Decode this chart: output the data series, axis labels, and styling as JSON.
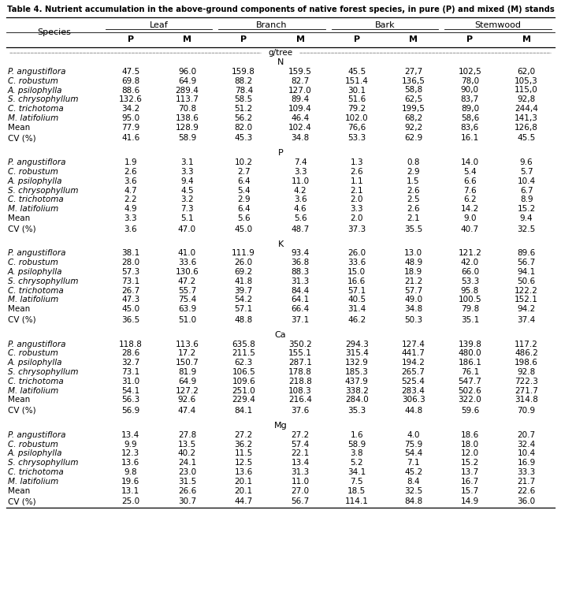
{
  "title": "Table 4. Nutrient accumulation in the above-ground components of native forest species, in pure (P) and mixed (M) stands",
  "col_groups": [
    "Leaf",
    "Branch",
    "Bark",
    "Stemwood"
  ],
  "sections": [
    {
      "nutrient": "N",
      "rows": [
        {
          "species": "P. angustiflora",
          "italic": true,
          "values": [
            "47.5",
            "96.0",
            "159.8",
            "159.5",
            "45.5",
            "27,7",
            "102,5",
            "62,0"
          ]
        },
        {
          "species": "C. robustum",
          "italic": true,
          "values": [
            "69.8",
            "64.9",
            "88.2",
            "82.7",
            "151.4",
            "136,5",
            "78,0",
            "105,3"
          ]
        },
        {
          "species": "A. psilophylla",
          "italic": true,
          "values": [
            "88.6",
            "289.4",
            "78.4",
            "127.0",
            "30.1",
            "58,8",
            "90,0",
            "115,0"
          ]
        },
        {
          "species": "S. chrysophyllum",
          "italic": true,
          "values": [
            "132.6",
            "113.7",
            "58.5",
            "89.4",
            "51.6",
            "62,5",
            "83,7",
            "92,8"
          ]
        },
        {
          "species": "C. trichotoma",
          "italic": true,
          "values": [
            "34.2",
            "70.8",
            "51.2",
            "109.4",
            "79.2",
            "199,5",
            "89,0",
            "244,4"
          ]
        },
        {
          "species": "M. latifolium",
          "italic": true,
          "values": [
            "95.0",
            "138.6",
            "56.2",
            "46.4",
            "102.0",
            "68,2",
            "58,6",
            "141,3"
          ]
        },
        {
          "species": "Mean",
          "italic": false,
          "values": [
            "77.9",
            "128.9",
            "82.0",
            "102.4",
            "76,6",
            "92,2",
            "83,6",
            "126,8"
          ]
        },
        {
          "species": "CV (%)",
          "italic": false,
          "values": [
            "41.6",
            "58.9",
            "45.3",
            "34.8",
            "53.3",
            "62.9",
            "16.1",
            "45.5"
          ]
        }
      ]
    },
    {
      "nutrient": "P",
      "rows": [
        {
          "species": "P. angustiflora",
          "italic": true,
          "values": [
            "1.9",
            "3.1",
            "10.2",
            "7.4",
            "1.3",
            "0.8",
            "14.0",
            "9.6"
          ]
        },
        {
          "species": "C. robustum",
          "italic": true,
          "values": [
            "2.6",
            "3.3",
            "2.7",
            "3.3",
            "2.6",
            "2.9",
            "5.4",
            "5.7"
          ]
        },
        {
          "species": "A. psilophylla",
          "italic": true,
          "values": [
            "3.6",
            "9.4",
            "6.4",
            "11.0",
            "1.1",
            "1.5",
            "6.6",
            "10.4"
          ]
        },
        {
          "species": "S. chrysophyllum",
          "italic": true,
          "values": [
            "4.7",
            "4.5",
            "5.4",
            "4.2",
            "2.1",
            "2.6",
            "7.6",
            "6.7"
          ]
        },
        {
          "species": "C. trichotoma",
          "italic": true,
          "values": [
            "2.2",
            "3.2",
            "2.9",
            "3.6",
            "2.0",
            "2.5",
            "6.2",
            "8.9"
          ]
        },
        {
          "species": "M. latifolium",
          "italic": true,
          "values": [
            "4.9",
            "7.3",
            "6.4",
            "4.6",
            "3.3",
            "2.6",
            "14.2",
            "15.2"
          ]
        },
        {
          "species": "Mean",
          "italic": false,
          "values": [
            "3.3",
            "5.1",
            "5.6",
            "5.6",
            "2.0",
            "2.1",
            "9.0",
            "9.4"
          ]
        },
        {
          "species": "CV (%)",
          "italic": false,
          "values": [
            "3.6",
            "47.0",
            "45.0",
            "48.7",
            "37.3",
            "35.5",
            "40.7",
            "32.5"
          ]
        }
      ]
    },
    {
      "nutrient": "K",
      "rows": [
        {
          "species": "P. angustiflora",
          "italic": true,
          "values": [
            "38.1",
            "41.0",
            "111.9",
            "93.4",
            "26.0",
            "13.0",
            "121.2",
            "89.6"
          ]
        },
        {
          "species": "C. robustum",
          "italic": true,
          "values": [
            "28.0",
            "33.6",
            "26.0",
            "36.8",
            "33.6",
            "48.9",
            "42.0",
            "56.7"
          ]
        },
        {
          "species": "A. psilophylla",
          "italic": true,
          "values": [
            "57.3",
            "130.6",
            "69.2",
            "88.3",
            "15.0",
            "18.9",
            "66.0",
            "94.1"
          ]
        },
        {
          "species": "S. chrysophyllum",
          "italic": true,
          "values": [
            "73.1",
            "47.2",
            "41.8",
            "31.3",
            "16.6",
            "21.2",
            "53.3",
            "50.6"
          ]
        },
        {
          "species": "C. trichotoma",
          "italic": true,
          "values": [
            "26.7",
            "55.7",
            "39.7",
            "84.4",
            "57.1",
            "57.7",
            "95.8",
            "122.2"
          ]
        },
        {
          "species": "M. latifolium",
          "italic": true,
          "values": [
            "47.3",
            "75.4",
            "54.2",
            "64.1",
            "40.5",
            "49.0",
            "100.5",
            "152.1"
          ]
        },
        {
          "species": "Mean",
          "italic": false,
          "values": [
            "45.0",
            "63.9",
            "57.1",
            "66.4",
            "31.4",
            "34.8",
            "79.8",
            "94.2"
          ]
        },
        {
          "species": "CV (%)",
          "italic": false,
          "values": [
            "36.5",
            "51.0",
            "48.8",
            "37.1",
            "46.2",
            "50.3",
            "35.1",
            "37.4"
          ]
        }
      ]
    },
    {
      "nutrient": "Ca",
      "rows": [
        {
          "species": "P. angustiflora",
          "italic": true,
          "values": [
            "118.8",
            "113.6",
            "635.8",
            "350.2",
            "294.3",
            "127.4",
            "139.8",
            "117.2"
          ]
        },
        {
          "species": "C. robustum",
          "italic": true,
          "values": [
            "28.6",
            "17.2",
            "211.5",
            "155.1",
            "315.4",
            "441.7",
            "480.0",
            "486.2"
          ]
        },
        {
          "species": "A. psilophylla",
          "italic": true,
          "values": [
            "32.7",
            "150.7",
            "62.3",
            "287.1",
            "132.9",
            "194.2",
            "186.1",
            "198.6"
          ]
        },
        {
          "species": "S. chrysophyllum",
          "italic": true,
          "values": [
            "73.1",
            "81.9",
            "106.5",
            "178.8",
            "185.3",
            "265.7",
            "76.1",
            "92.8"
          ]
        },
        {
          "species": "C. trichotoma",
          "italic": true,
          "values": [
            "31.0",
            "64.9",
            "109.6",
            "218.8",
            "437.9",
            "525.4",
            "547.7",
            "722.3"
          ]
        },
        {
          "species": "M. latifolium",
          "italic": true,
          "values": [
            "54.1",
            "127.2",
            "251.0",
            "108.3",
            "338.2",
            "283.4",
            "502.6",
            "271.7"
          ]
        },
        {
          "species": "Mean",
          "italic": false,
          "values": [
            "56.3",
            "92.6",
            "229.4",
            "216.4",
            "284.0",
            "306.3",
            "322.0",
            "314.8"
          ]
        },
        {
          "species": "CV (%)",
          "italic": false,
          "values": [
            "56.9",
            "47.4",
            "84.1",
            "37.6",
            "35.3",
            "44.8",
            "59.6",
            "70.9"
          ]
        }
      ]
    },
    {
      "nutrient": "Mg",
      "rows": [
        {
          "species": "P. angustiflora",
          "italic": true,
          "values": [
            "13.4",
            "27.8",
            "27.2",
            "27.2",
            "1.6",
            "4.0",
            "18.6",
            "20.7"
          ]
        },
        {
          "species": "C. robustum",
          "italic": true,
          "values": [
            "9.9",
            "13.5",
            "36.2",
            "57.4",
            "58.9",
            "75.9",
            "18.0",
            "32.4"
          ]
        },
        {
          "species": "A. psilophylla",
          "italic": true,
          "values": [
            "12.3",
            "40.2",
            "11.5",
            "22.1",
            "3.8",
            "54.4",
            "12.0",
            "10.4"
          ]
        },
        {
          "species": "S. chrysophyllum",
          "italic": true,
          "values": [
            "13.6",
            "24.1",
            "12.5",
            "13.4",
            "5.2",
            "7.1",
            "15.2",
            "16.9"
          ]
        },
        {
          "species": "C. trichotoma",
          "italic": true,
          "values": [
            "9.8",
            "23.0",
            "13.6",
            "31.3",
            "34.1",
            "45.2",
            "13.7",
            "33.3"
          ]
        },
        {
          "species": "M. latifolium",
          "italic": true,
          "values": [
            "19.6",
            "31.5",
            "20.1",
            "11.0",
            "7.5",
            "8.4",
            "16.7",
            "21.7"
          ]
        },
        {
          "species": "Mean",
          "italic": false,
          "values": [
            "13.1",
            "26.6",
            "20.1",
            "27.0",
            "18.5",
            "32.5",
            "15.7",
            "22.6"
          ]
        },
        {
          "species": "CV (%)",
          "italic": false,
          "values": [
            "25.0",
            "30.7",
            "44.7",
            "56.7",
            "114.1",
            "84.8",
            "14.9",
            "36.0"
          ]
        }
      ]
    }
  ]
}
